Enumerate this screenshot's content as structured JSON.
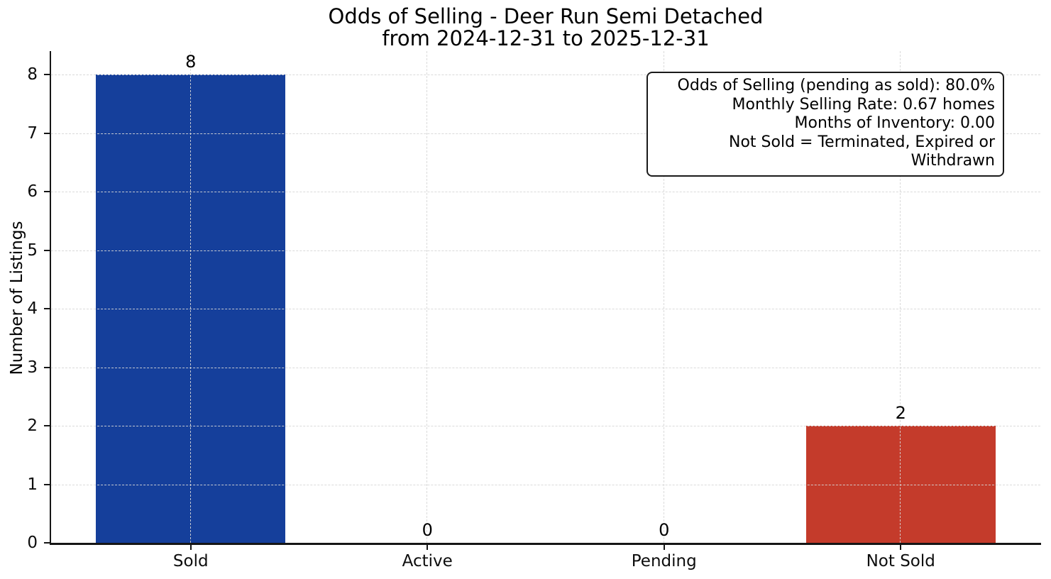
{
  "figure": {
    "title_line1": "Odds of Selling - Deer Run Semi Detached",
    "title_line2": "from 2024-12-31 to 2025-12-31"
  },
  "annotation_box": {
    "lines": [
      "Odds of Selling (pending as sold): 80.0%",
      "Monthly Selling Rate: 0.67 homes",
      "Months of Inventory: 0.00",
      "Not Sold = Terminated, Expired or Withdrawn"
    ]
  },
  "chart_data": {
    "type": "bar",
    "title": "Odds of Selling - Deer Run Semi Detached\nfrom 2024-12-31 to 2025-12-31",
    "categories": [
      "Sold",
      "Active",
      "Pending",
      "Not Sold"
    ],
    "values": [
      8,
      0,
      0,
      2
    ],
    "value_labels": [
      "8",
      "0",
      "0",
      "2"
    ],
    "bar_colors": [
      "#153f9b",
      "#153f9b",
      "#153f9b",
      "#c43b2b"
    ],
    "xlabel": "",
    "ylabel": "Number of Listings",
    "ylim": [
      0,
      8.4
    ],
    "yticks": [
      0,
      1,
      2,
      3,
      4,
      5,
      6,
      7,
      8
    ],
    "grid": {
      "style": "dashed",
      "axes": "both",
      "color": "#d6d6d6"
    },
    "legend": "none",
    "annotations": [
      "Odds of Selling (pending as sold): 80.0%",
      "Monthly Selling Rate: 0.67 homes",
      "Months of Inventory: 0.00",
      "Not Sold = Terminated, Expired or Withdrawn"
    ],
    "annotation_position": "top-right"
  },
  "colors": {
    "background": "#ffffff",
    "axis": "#161616",
    "text": "#000000",
    "grid": "#d6d6d6",
    "bar_blue": "#153f9b",
    "bar_red": "#c43b2b"
  }
}
